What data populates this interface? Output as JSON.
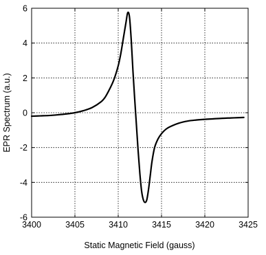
{
  "chart_data": {
    "type": "line",
    "title": "",
    "xlabel": "Static Magnetic Field (gauss)",
    "ylabel": "EPR Spectrum (a.u.)",
    "xlim": [
      3400,
      3425
    ],
    "ylim": [
      -6,
      6
    ],
    "xticks": [
      3400,
      3405,
      3410,
      3415,
      3420,
      3425
    ],
    "yticks": [
      -6,
      -4,
      -2,
      0,
      2,
      4,
      6
    ],
    "grid": true,
    "legend": "none",
    "line_color": "#000000",
    "series": [
      {
        "x": [
          3400.0,
          3401.0,
          3402.0,
          3403.0,
          3404.0,
          3405.0,
          3406.0,
          3407.0,
          3408.0,
          3408.5,
          3409.0,
          3409.5,
          3410.0,
          3410.3,
          3410.6,
          3410.9,
          3411.1,
          3411.3,
          3411.5,
          3411.7,
          3411.9,
          3412.1,
          3412.3,
          3412.5,
          3412.7,
          3412.9,
          3413.1,
          3413.3,
          3413.5,
          3413.7,
          3413.9,
          3414.2,
          3414.6,
          3415.0,
          3415.5,
          3416.0,
          3417.0,
          3418.0,
          3419.0,
          3420.0,
          3421.0,
          3422.0,
          3423.0,
          3424.0,
          3424.5
        ],
        "y": [
          -0.2,
          -0.18,
          -0.16,
          -0.12,
          -0.07,
          0.0,
          0.12,
          0.3,
          0.62,
          0.9,
          1.35,
          1.9,
          2.7,
          3.4,
          4.3,
          5.2,
          5.75,
          5.5,
          4.2,
          2.4,
          0.8,
          -0.7,
          -2.2,
          -3.5,
          -4.5,
          -5.0,
          -5.15,
          -5.0,
          -4.4,
          -3.6,
          -2.8,
          -2.0,
          -1.5,
          -1.2,
          -0.95,
          -0.8,
          -0.6,
          -0.48,
          -0.42,
          -0.38,
          -0.35,
          -0.32,
          -0.3,
          -0.28,
          -0.27
        ]
      }
    ]
  }
}
